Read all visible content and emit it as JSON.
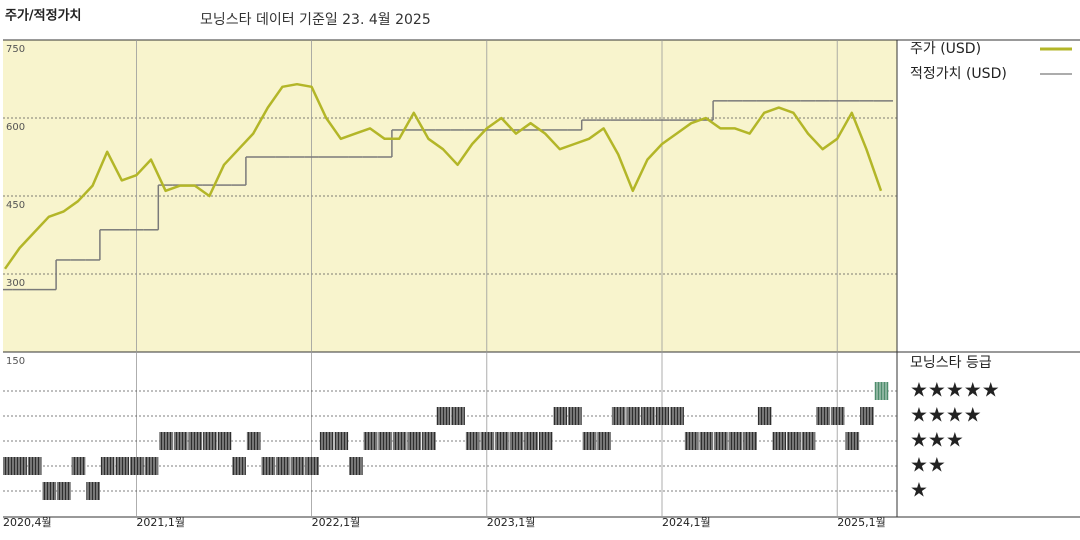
{
  "chart_data": {
    "type": "line",
    "title": "주가/적정가치",
    "subtitle": "모닝스타 데이터 기준일 23. 4월 2025",
    "categories": [
      "2020,4월",
      null,
      null,
      null,
      null,
      null,
      null,
      null,
      null,
      "2021,1월",
      null,
      null,
      null,
      null,
      null,
      null,
      null,
      null,
      null,
      null,
      null,
      "2022,1월",
      null,
      null,
      null,
      null,
      null,
      null,
      null,
      null,
      null,
      null,
      null,
      "2023,1월",
      null,
      null,
      null,
      null,
      null,
      null,
      null,
      null,
      null,
      null,
      null,
      "2024,1월",
      null,
      null,
      null,
      null,
      null,
      null,
      null,
      null,
      null,
      null,
      null,
      "2025,1월",
      null,
      null,
      null
    ],
    "series": [
      {
        "name": "주가 (USD)",
        "color": "#b3b628",
        "style": "line",
        "values": [
          310,
          350,
          380,
          410,
          420,
          440,
          470,
          535,
          480,
          490,
          520,
          460,
          470,
          470,
          450,
          510,
          540,
          570,
          620,
          660,
          665,
          660,
          600,
          560,
          570,
          580,
          560,
          560,
          610,
          560,
          540,
          510,
          550,
          580,
          600,
          570,
          590,
          570,
          540,
          550,
          560,
          580,
          530,
          460,
          520,
          550,
          570,
          590,
          600,
          580,
          580,
          570,
          610,
          620,
          610,
          570,
          540,
          560,
          610,
          540,
          460
        ]
      },
      {
        "name": "적정가치 (USD)",
        "color": "#7a7a7a",
        "style": "step",
        "values": [
          270,
          270,
          270,
          270,
          327,
          327,
          327,
          385,
          385,
          385,
          385,
          471,
          471,
          471,
          471,
          471,
          471,
          525,
          525,
          525,
          525,
          525,
          525,
          525,
          525,
          525,
          525,
          577,
          577,
          577,
          577,
          577,
          577,
          577,
          577,
          577,
          577,
          577,
          577,
          577,
          596,
          596,
          596,
          596,
          596,
          596,
          596,
          596,
          596,
          633,
          633,
          633,
          633,
          633,
          633,
          633,
          633,
          633,
          633,
          633,
          633
        ]
      }
    ],
    "ylim": [
      150,
      750
    ],
    "yticks": [
      150,
      300,
      450,
      600,
      750
    ],
    "grid": true,
    "background": "#f8f4cd",
    "ratings": {
      "title": "모닝스타 등급",
      "labels": [
        "★★★★★",
        "★★★★",
        "★★★",
        "★★",
        "★"
      ],
      "values": [
        2,
        2,
        2,
        1,
        1,
        2,
        1,
        2,
        2,
        2,
        2,
        3,
        3,
        3,
        3,
        3,
        2,
        3,
        2,
        2,
        2,
        2,
        3,
        3,
        2,
        3,
        3,
        3,
        3,
        3,
        4,
        4,
        3,
        3,
        3,
        3,
        3,
        3,
        4,
        4,
        3,
        3,
        4,
        4,
        4,
        4,
        4,
        3,
        3,
        3,
        3,
        3,
        4,
        3,
        3,
        3,
        4,
        4,
        3,
        4,
        5
      ],
      "colors": [
        "#2e2e2e",
        "#2e2e2e",
        "#2e2e2e",
        "#2e2e2e",
        "#4e8c6c"
      ]
    }
  }
}
